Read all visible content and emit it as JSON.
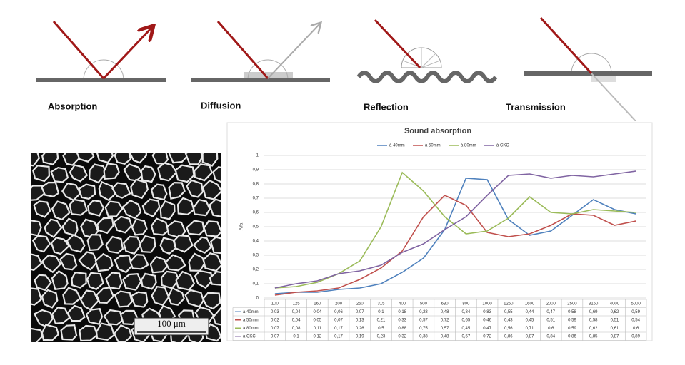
{
  "diagram_labels": [
    "Absorption",
    "Diffusion",
    "Reflection",
    "Transmission"
  ],
  "micrograph": {
    "scale_label": "100 μm"
  },
  "chart_data": {
    "type": "line",
    "title": "Sound absorption",
    "ylabel": "Alfa",
    "categories": [
      "100",
      "125",
      "160",
      "200",
      "250",
      "315",
      "400",
      "500",
      "630",
      "800",
      "1000",
      "1250",
      "1600",
      "2000",
      "2500",
      "3150",
      "4000",
      "5000"
    ],
    "ylim": [
      0,
      1
    ],
    "yticks": [
      0,
      {
        "value": 0.1,
        "label": "0,1"
      },
      {
        "value": 0.2,
        "label": "0,2"
      },
      {
        "value": 0.3,
        "label": "0,3"
      },
      {
        "value": 0.4,
        "label": "0,4"
      },
      {
        "value": 0.5,
        "label": "0,5"
      },
      {
        "value": 0.6,
        "label": "0,6"
      },
      {
        "value": 0.7,
        "label": "0,7"
      },
      {
        "value": 0.8,
        "label": "0,8"
      },
      {
        "value": 0.9,
        "label": "0,9"
      },
      1
    ],
    "grid": true,
    "series": [
      {
        "name": "à 40mm",
        "color": "#4f81bd",
        "values": [
          0.03,
          0.04,
          0.04,
          0.06,
          0.07,
          0.1,
          0.18,
          0.28,
          0.48,
          0.84,
          0.83,
          0.55,
          0.44,
          0.47,
          0.58,
          0.69,
          0.62,
          0.59
        ],
        "value_labels": [
          "0,03",
          "0,04",
          "0,04",
          "0,06",
          "0,07",
          "0,1",
          "0,18",
          "0,28",
          "0,48",
          "0,84",
          "0,83",
          "0,55",
          "0,44",
          "0,47",
          "0,58",
          "0,69",
          "0,62",
          "0,59"
        ]
      },
      {
        "name": "à 50mm",
        "color": "#c0504d",
        "values": [
          0.02,
          0.04,
          0.05,
          0.07,
          0.13,
          0.21,
          0.33,
          0.57,
          0.72,
          0.65,
          0.46,
          0.43,
          0.45,
          0.51,
          0.59,
          0.58,
          0.51,
          0.54
        ],
        "value_labels": [
          "0,02",
          "0,04",
          "0,05",
          "0,07",
          "0,13",
          "0,21",
          "0,33",
          "0,57",
          "0,72",
          "0,65",
          "0,46",
          "0,43",
          "0,45",
          "0,51",
          "0,59",
          "0,58",
          "0,51",
          "0,54"
        ]
      },
      {
        "name": "à 80mm",
        "color": "#9bbb59",
        "values": [
          0.07,
          0.08,
          0.11,
          0.17,
          0.26,
          0.5,
          0.88,
          0.75,
          0.57,
          0.45,
          0.47,
          0.56,
          0.71,
          0.6,
          0.59,
          0.62,
          0.61,
          0.6
        ],
        "value_labels": [
          "0,07",
          "0,08",
          "0,11",
          "0,17",
          "0,26",
          "0,5",
          "0,88",
          "0,75",
          "0,57",
          "0,45",
          "0,47",
          "0,56",
          "0,71",
          "0,6",
          "0,59",
          "0,62",
          "0,61",
          "0,6"
        ]
      },
      {
        "name": "à CKC",
        "color": "#8064a2",
        "values": [
          0.07,
          0.1,
          0.12,
          0.17,
          0.19,
          0.23,
          0.32,
          0.38,
          0.48,
          0.57,
          0.72,
          0.86,
          0.87,
          0.84,
          0.86,
          0.85,
          0.87,
          0.89
        ],
        "value_labels": [
          "0,07",
          "0,1",
          "0,12",
          "0,17",
          "0,19",
          "0,23",
          "0,32",
          "0,38",
          "0,48",
          "0,57",
          "0,72",
          "0,86",
          "0,87",
          "0,84",
          "0,86",
          "0,85",
          "0,87",
          "0,89"
        ]
      }
    ]
  }
}
